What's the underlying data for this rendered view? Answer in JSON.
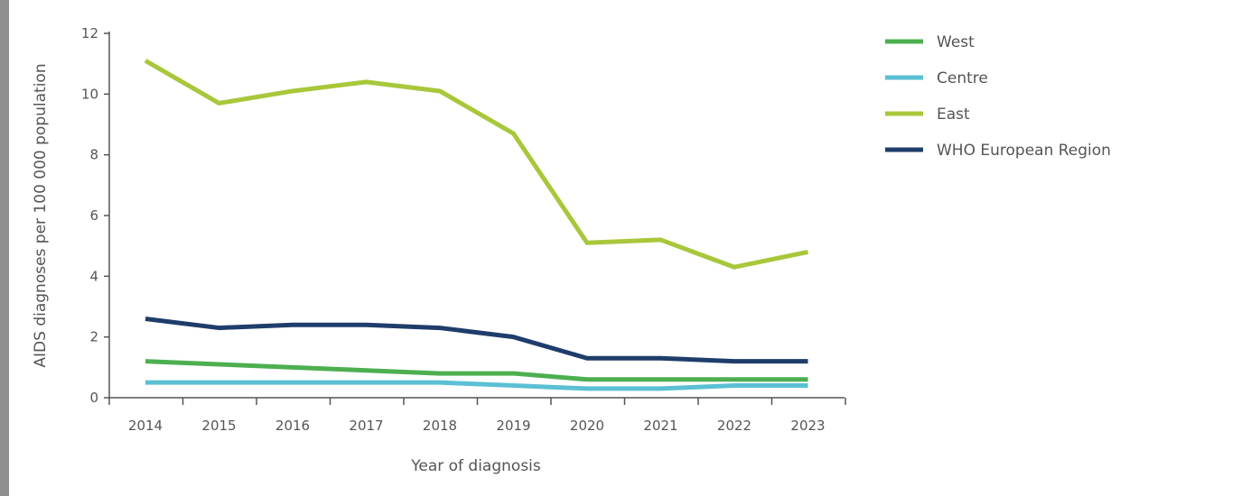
{
  "chart_data": {
    "type": "line",
    "xlabel": "Year of diagnosis",
    "ylabel": "AIDS diagnoses per 100 000 population",
    "ylim": [
      0,
      12
    ],
    "yticks": [
      0,
      2,
      4,
      6,
      8,
      10,
      12
    ],
    "x": [
      "2014",
      "2015",
      "2016",
      "2017",
      "2018",
      "2019",
      "2020",
      "2021",
      "2022",
      "2023"
    ],
    "legend_position": "right",
    "grid": false,
    "series": [
      {
        "name": "West",
        "color": "#4caf50",
        "values": [
          1.2,
          1.1,
          1.0,
          0.9,
          0.8,
          0.8,
          0.6,
          0.6,
          0.6,
          0.6
        ]
      },
      {
        "name": "Centre",
        "color": "#5bc0d4",
        "values": [
          0.5,
          0.5,
          0.5,
          0.5,
          0.5,
          0.4,
          0.3,
          0.3,
          0.4,
          0.4
        ]
      },
      {
        "name": "East",
        "color": "#a8c73a",
        "values": [
          11.1,
          9.7,
          10.1,
          10.4,
          10.1,
          8.7,
          5.1,
          5.2,
          4.3,
          4.8
        ]
      },
      {
        "name": "WHO European Region",
        "color": "#1f3d6b",
        "values": [
          2.6,
          2.3,
          2.4,
          2.4,
          2.3,
          2.0,
          1.3,
          1.3,
          1.2,
          1.2
        ]
      }
    ]
  }
}
